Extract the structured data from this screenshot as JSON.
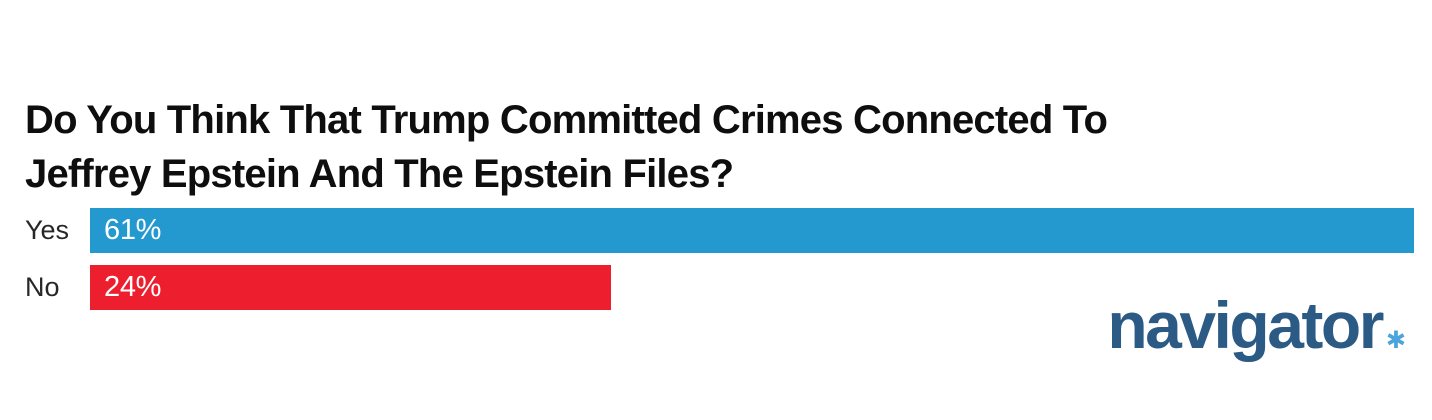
{
  "title": {
    "line1": "Do You Think That Trump Committed Crimes Connected To",
    "line2": "Jeffrey Epstein And The Epstein Files?"
  },
  "chart_data": {
    "type": "bar",
    "orientation": "horizontal",
    "title": "Do You Think That Trump Committed Crimes Connected To Jeffrey Epstein And The Epstein Files?",
    "categories": [
      "Yes",
      "No"
    ],
    "values": [
      61,
      24
    ],
    "value_labels": [
      "61%",
      "24%"
    ],
    "bar_colors": [
      "#2399CF",
      "#ED1F2E"
    ],
    "value_label_position": "inside-left",
    "value_label_color": "#ffffff",
    "axis_labels_shown": false,
    "grid": false,
    "legend": "none",
    "scale": "max value (61) spans full track width"
  },
  "branding": {
    "logo_text": "navigator",
    "logo_mark": "✱",
    "logo_color": "#2B5B85",
    "logo_mark_color": "#4BA5DC"
  }
}
